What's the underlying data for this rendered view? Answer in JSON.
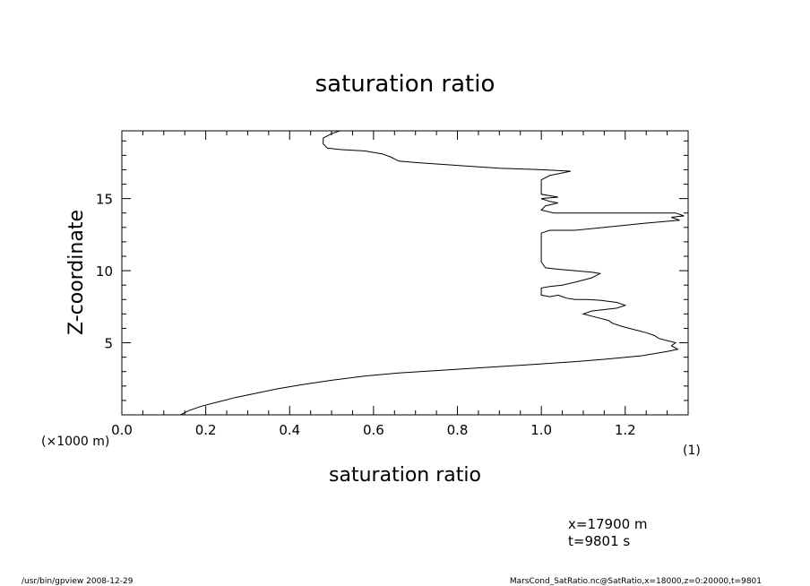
{
  "chart_data": {
    "type": "line",
    "title": "saturation ratio",
    "xlabel": "saturation ratio",
    "ylabel": "Z-coordinate",
    "x_unit": "(1)",
    "y_unit": "(×1000 m)",
    "xlim": [
      0,
      1.35
    ],
    "ylim": [
      0,
      19.7
    ],
    "x_major_ticks": [
      0,
      0.2,
      0.4,
      0.6,
      0.8,
      1.0,
      1.2
    ],
    "x_tick_labels": [
      "0.0",
      "0.2",
      "0.4",
      "0.6",
      "0.8",
      "1.0",
      "1.2"
    ],
    "x_minor_step": 0.05,
    "y_major_ticks": [
      5,
      10,
      15
    ],
    "y_tick_labels": [
      "5",
      "10",
      "15"
    ],
    "y_minor_step": 1,
    "grid": false,
    "series": [
      {
        "x": [
          0.14,
          0.16,
          0.19,
          0.23,
          0.27,
          0.32,
          0.37,
          0.43,
          0.5,
          0.58,
          0.66,
          0.74,
          0.82,
          0.9,
          0.98,
          1.06,
          1.15,
          1.24,
          1.3,
          1.325,
          1.31,
          1.32,
          1.3,
          1.28,
          1.27,
          1.25,
          1.23,
          1.21,
          1.19,
          1.17,
          1.16,
          1.14,
          1.12,
          1.1,
          1.12,
          1.18,
          1.2,
          1.18,
          1.14,
          1.11,
          1.08,
          1.06,
          1.05,
          1.04,
          1.02,
          1.0,
          1.0,
          1.02,
          1.05,
          1.08,
          1.12,
          1.14,
          1.12,
          1.08,
          1.04,
          1.01,
          1.0,
          1.0,
          1.0,
          1.0,
          1.0,
          1.02,
          1.08,
          1.15,
          1.25,
          1.33,
          1.31,
          1.34,
          1.32,
          1.2,
          1.1,
          1.03,
          1.0,
          1.01,
          1.04,
          1.02,
          1.0,
          1.04,
          1.0,
          1.0,
          1.0,
          1.02,
          1.07,
          1.0,
          0.9,
          0.8,
          0.7,
          0.66,
          0.64,
          0.62,
          0.58,
          0.52,
          0.49,
          0.48,
          0.48,
          0.5,
          0.52
        ],
        "y": [
          0,
          0.3,
          0.6,
          0.9,
          1.2,
          1.5,
          1.8,
          2.1,
          2.4,
          2.7,
          2.9,
          3.05,
          3.2,
          3.35,
          3.5,
          3.65,
          3.85,
          4.1,
          4.4,
          4.55,
          4.8,
          5.0,
          5.15,
          5.3,
          5.5,
          5.7,
          5.85,
          6.0,
          6.15,
          6.35,
          6.55,
          6.7,
          6.85,
          7.0,
          7.2,
          7.4,
          7.6,
          7.8,
          7.95,
          8.0,
          8.0,
          8.1,
          8.2,
          8.3,
          8.2,
          8.3,
          8.8,
          8.9,
          9.0,
          9.2,
          9.5,
          9.8,
          9.9,
          10.0,
          10.1,
          10.2,
          10.6,
          11.0,
          11.5,
          12.0,
          12.6,
          12.8,
          12.8,
          13.0,
          13.3,
          13.5,
          13.7,
          13.8,
          14.0,
          14.0,
          14.0,
          14.0,
          14.2,
          14.5,
          14.7,
          14.8,
          15.0,
          15.1,
          15.3,
          15.8,
          16.3,
          16.6,
          16.9,
          17.0,
          17.1,
          17.3,
          17.5,
          17.6,
          17.9,
          18.1,
          18.3,
          18.4,
          18.5,
          18.8,
          19.2,
          19.5,
          19.7
        ]
      }
    ]
  },
  "info": {
    "x_position": "x=17900  m",
    "time": "t=9801  s"
  },
  "footer": {
    "left": "/usr/bin/gpview   2008-12-29",
    "right": "MarsCond_SatRatio.nc@SatRatio,x=18000,z=0:20000,t=9801"
  }
}
